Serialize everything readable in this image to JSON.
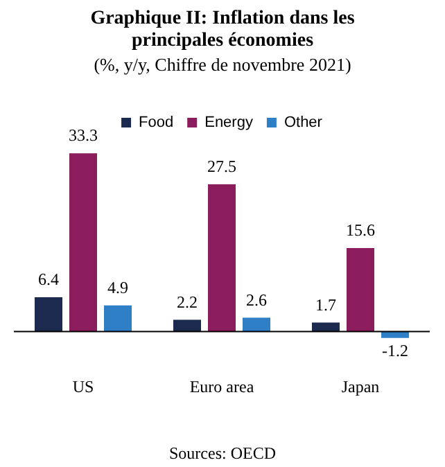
{
  "chart_data": {
    "type": "bar",
    "title": "Graphique II: Inflation dans les principales économies",
    "subtitle": "(%, y/y, Chiffre de novembre 2021)",
    "categories": [
      "US",
      "Euro area",
      "Japan"
    ],
    "series": [
      {
        "name": "Food",
        "color": "#1c2a4f",
        "values": [
          6.4,
          2.2,
          1.7
        ]
      },
      {
        "name": "Energy",
        "color": "#8c1d5c",
        "values": [
          33.3,
          27.5,
          15.6
        ]
      },
      {
        "name": "Other",
        "color": "#2f7fc6",
        "values": [
          4.9,
          2.6,
          -1.2
        ]
      }
    ],
    "data_labels": true,
    "legend": "top",
    "grid": false,
    "annotations": [
      "Sources: OECD"
    ]
  }
}
